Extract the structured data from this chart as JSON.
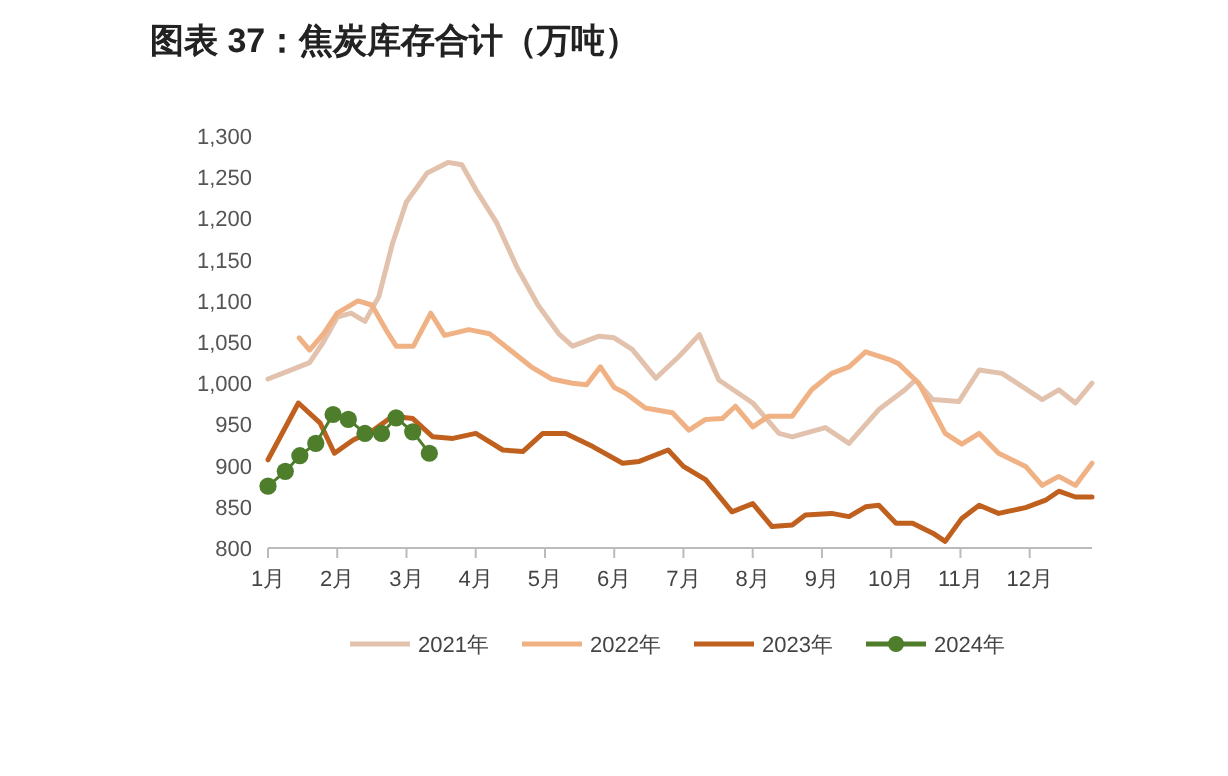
{
  "chart_data": {
    "type": "line",
    "title": "图表 37：焦炭库存合计（万吨）",
    "xlim": [
      1,
      12.9
    ],
    "xticks": [
      {
        "value": 1,
        "label": "1月"
      },
      {
        "value": 2,
        "label": "2月"
      },
      {
        "value": 3,
        "label": "3月"
      },
      {
        "value": 4,
        "label": "4月"
      },
      {
        "value": 5,
        "label": "5月"
      },
      {
        "value": 6,
        "label": "6月"
      },
      {
        "value": 7,
        "label": "7月"
      },
      {
        "value": 8,
        "label": "8月"
      },
      {
        "value": 9,
        "label": "9月"
      },
      {
        "value": 10,
        "label": "10月"
      },
      {
        "value": 11,
        "label": "11月"
      },
      {
        "value": 12,
        "label": "12月"
      }
    ],
    "ylim": [
      800,
      1300
    ],
    "yticks": [
      {
        "value": 800,
        "label": "800"
      },
      {
        "value": 850,
        "label": "850"
      },
      {
        "value": 900,
        "label": "900"
      },
      {
        "value": 950,
        "label": "950"
      },
      {
        "value": 1000,
        "label": "1,000"
      },
      {
        "value": 1050,
        "label": "1,050"
      },
      {
        "value": 1100,
        "label": "1,100"
      },
      {
        "value": 1150,
        "label": "1,150"
      },
      {
        "value": 1200,
        "label": "1,200"
      },
      {
        "value": 1250,
        "label": "1,250"
      },
      {
        "value": 1300,
        "label": "1,300"
      }
    ],
    "legend": "bottom",
    "marker": "none",
    "line_style": "solid",
    "series": [
      {
        "name": "2021年",
        "color": "#e2c2ad",
        "x": [
          1.0,
          1.3,
          1.6,
          1.8,
          2.0,
          2.2,
          2.4,
          2.6,
          2.8,
          3.0,
          3.3,
          3.6,
          3.8,
          4.0,
          4.3,
          4.6,
          4.9,
          5.2,
          5.4,
          5.78,
          6.0,
          6.26,
          6.6,
          6.94,
          7.23,
          7.51,
          8.0,
          8.38,
          8.57,
          9.05,
          9.39,
          9.82,
          10.2,
          10.35,
          10.6,
          10.98,
          11.27,
          11.6,
          12.18,
          12.42,
          12.66,
          12.9
        ],
        "values": [
          1005,
          1015,
          1025,
          1050,
          1080,
          1085,
          1075,
          1105,
          1170,
          1220,
          1255,
          1268,
          1265,
          1235,
          1195,
          1140,
          1095,
          1060,
          1045,
          1057,
          1055,
          1041,
          1006,
          1033,
          1059,
          1004,
          976,
          939,
          935,
          946,
          927,
          968,
          992,
          1004,
          980,
          978,
          1016,
          1012,
          980,
          992,
          976,
          1000
        ]
      },
      {
        "name": "2022年",
        "color": "#f0b285",
        "x": [
          1.45,
          1.6,
          1.8,
          2.0,
          2.3,
          2.5,
          2.7,
          2.85,
          3.1,
          3.35,
          3.55,
          3.9,
          4.2,
          4.5,
          4.8,
          5.1,
          5.4,
          5.6,
          5.8,
          6.0,
          6.16,
          6.45,
          6.84,
          7.08,
          7.32,
          7.56,
          7.75,
          8.0,
          8.23,
          8.57,
          8.85,
          9.14,
          9.39,
          9.63,
          10.0,
          10.1,
          10.4,
          10.78,
          11.02,
          11.27,
          11.55,
          11.94,
          12.18,
          12.42,
          12.66,
          12.9
        ],
        "values": [
          1055,
          1040,
          1060,
          1085,
          1100,
          1095,
          1065,
          1045,
          1045,
          1085,
          1058,
          1065,
          1060,
          1040,
          1020,
          1005,
          1000,
          998,
          1020,
          995,
          988,
          970,
          964,
          943,
          956,
          957,
          972,
          947,
          960,
          960,
          992,
          1012,
          1020,
          1038,
          1028,
          1024,
          1000,
          939,
          926,
          939,
          915,
          899,
          876,
          887,
          876,
          903
        ]
      },
      {
        "name": "2023年",
        "color": "#c0601e",
        "x": [
          1.0,
          1.44,
          1.75,
          1.96,
          2.23,
          2.52,
          2.8,
          3.09,
          3.38,
          3.67,
          4.0,
          4.39,
          4.68,
          4.97,
          5.3,
          5.69,
          6.12,
          6.36,
          6.78,
          7.0,
          7.32,
          7.7,
          8.0,
          8.28,
          8.57,
          8.76,
          9.14,
          9.39,
          9.63,
          9.82,
          10.07,
          10.31,
          10.6,
          10.78,
          11.02,
          11.27,
          11.55,
          11.94,
          12.23,
          12.42,
          12.66,
          12.9
        ],
        "values": [
          907,
          976,
          952,
          915,
          931,
          943,
          960,
          957,
          935,
          933,
          939,
          919,
          917,
          939,
          939,
          923,
          903,
          905,
          919,
          899,
          883,
          844,
          854,
          826,
          828,
          840,
          842,
          838,
          850,
          852,
          830,
          830,
          818,
          808,
          836,
          852,
          842,
          849,
          858,
          869,
          862,
          862
        ]
      },
      {
        "name": "2024年",
        "color": "#4e7d2c",
        "marker": "circle",
        "x": [
          1.0,
          1.25,
          1.46,
          1.69,
          1.94,
          2.16,
          2.4,
          2.64,
          2.85,
          3.09,
          3.33
        ],
        "values": [
          875,
          893,
          912,
          927,
          962,
          956,
          939,
          939,
          958,
          941,
          915
        ]
      }
    ]
  }
}
